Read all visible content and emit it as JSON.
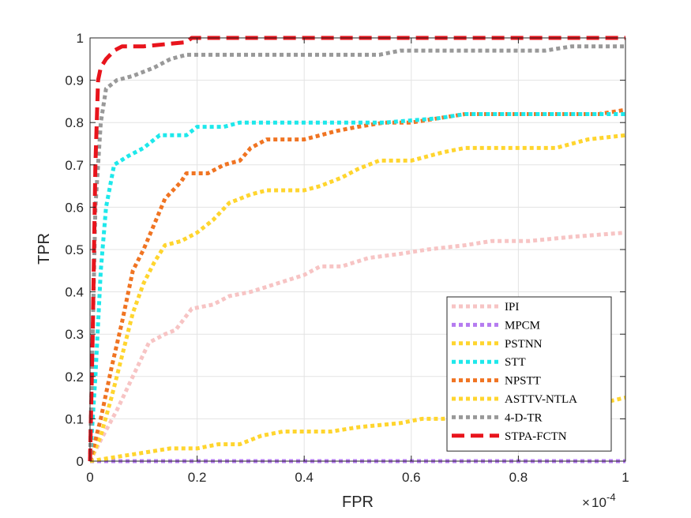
{
  "chart_data": {
    "type": "line",
    "title": "",
    "xlabel": "FPR",
    "ylabel": "TPR",
    "x_exponent_label": "10",
    "x_exponent": "-4",
    "xlim": [
      0,
      1
    ],
    "ylim": [
      0,
      1
    ],
    "x_ticks": [
      "0",
      "0.2",
      "0.4",
      "0.6",
      "0.8",
      "1"
    ],
    "y_ticks": [
      "0",
      "0.1",
      "0.2",
      "0.3",
      "0.4",
      "0.5",
      "0.6",
      "0.7",
      "0.8",
      "0.9",
      "1"
    ],
    "grid": true,
    "legend_position": "bottom-right",
    "series": [
      {
        "name": "IPI",
        "color": "#F7C4C4",
        "style": "dotted",
        "points": [
          [
            0,
            0
          ],
          [
            0.02,
            0.05
          ],
          [
            0.05,
            0.12
          ],
          [
            0.08,
            0.2
          ],
          [
            0.11,
            0.28
          ],
          [
            0.14,
            0.3
          ],
          [
            0.16,
            0.31
          ],
          [
            0.19,
            0.36
          ],
          [
            0.23,
            0.37
          ],
          [
            0.26,
            0.39
          ],
          [
            0.3,
            0.4
          ],
          [
            0.35,
            0.42
          ],
          [
            0.4,
            0.44
          ],
          [
            0.43,
            0.46
          ],
          [
            0.47,
            0.46
          ],
          [
            0.52,
            0.48
          ],
          [
            0.58,
            0.49
          ],
          [
            0.63,
            0.5
          ],
          [
            0.7,
            0.51
          ],
          [
            0.75,
            0.52
          ],
          [
            0.82,
            0.52
          ],
          [
            0.9,
            0.53
          ],
          [
            1.0,
            0.54
          ]
        ]
      },
      {
        "name": "MPCM",
        "color": "#B57BF0",
        "style": "dotted",
        "points": [
          [
            0,
            0
          ],
          [
            1.0,
            0
          ]
        ]
      },
      {
        "name": "PSTNN",
        "color": "#FFD52E",
        "style": "dotted",
        "points": [
          [
            0,
            0
          ],
          [
            0.05,
            0.01
          ],
          [
            0.1,
            0.02
          ],
          [
            0.15,
            0.03
          ],
          [
            0.2,
            0.03
          ],
          [
            0.24,
            0.04
          ],
          [
            0.28,
            0.04
          ],
          [
            0.32,
            0.06
          ],
          [
            0.36,
            0.07
          ],
          [
            0.45,
            0.07
          ],
          [
            0.5,
            0.08
          ],
          [
            0.58,
            0.09
          ],
          [
            0.62,
            0.1
          ],
          [
            0.66,
            0.1
          ],
          [
            0.72,
            0.11
          ],
          [
            0.8,
            0.11
          ],
          [
            0.87,
            0.12
          ],
          [
            0.93,
            0.13
          ],
          [
            1.0,
            0.15
          ]
        ]
      },
      {
        "name": "STT",
        "color": "#1EE8EB",
        "style": "dotted",
        "points": [
          [
            0,
            0
          ],
          [
            0.01,
            0.2
          ],
          [
            0.02,
            0.45
          ],
          [
            0.03,
            0.6
          ],
          [
            0.045,
            0.7
          ],
          [
            0.07,
            0.72
          ],
          [
            0.1,
            0.74
          ],
          [
            0.13,
            0.77
          ],
          [
            0.18,
            0.77
          ],
          [
            0.2,
            0.79
          ],
          [
            0.25,
            0.79
          ],
          [
            0.28,
            0.8
          ],
          [
            0.55,
            0.8
          ],
          [
            0.65,
            0.81
          ],
          [
            0.7,
            0.82
          ],
          [
            1.0,
            0.82
          ]
        ]
      },
      {
        "name": "NPSTT",
        "color": "#F07422",
        "style": "dotted",
        "points": [
          [
            0,
            0
          ],
          [
            0.02,
            0.1
          ],
          [
            0.04,
            0.22
          ],
          [
            0.06,
            0.33
          ],
          [
            0.08,
            0.45
          ],
          [
            0.1,
            0.5
          ],
          [
            0.12,
            0.56
          ],
          [
            0.14,
            0.62
          ],
          [
            0.17,
            0.66
          ],
          [
            0.18,
            0.68
          ],
          [
            0.22,
            0.68
          ],
          [
            0.25,
            0.7
          ],
          [
            0.28,
            0.71
          ],
          [
            0.3,
            0.74
          ],
          [
            0.33,
            0.76
          ],
          [
            0.4,
            0.76
          ],
          [
            0.43,
            0.77
          ],
          [
            0.46,
            0.78
          ],
          [
            0.5,
            0.79
          ],
          [
            0.55,
            0.8
          ],
          [
            0.6,
            0.8
          ],
          [
            0.65,
            0.81
          ],
          [
            0.7,
            0.82
          ],
          [
            0.95,
            0.82
          ],
          [
            1.0,
            0.83
          ]
        ]
      },
      {
        "name": "ASTTV-NTLA",
        "color": "#FFD52E",
        "style": "dotted",
        "points": [
          [
            0,
            0
          ],
          [
            0.02,
            0.06
          ],
          [
            0.04,
            0.15
          ],
          [
            0.06,
            0.25
          ],
          [
            0.08,
            0.35
          ],
          [
            0.1,
            0.42
          ],
          [
            0.12,
            0.47
          ],
          [
            0.14,
            0.51
          ],
          [
            0.17,
            0.52
          ],
          [
            0.2,
            0.54
          ],
          [
            0.23,
            0.57
          ],
          [
            0.26,
            0.61
          ],
          [
            0.3,
            0.63
          ],
          [
            0.33,
            0.64
          ],
          [
            0.4,
            0.64
          ],
          [
            0.43,
            0.65
          ],
          [
            0.47,
            0.67
          ],
          [
            0.5,
            0.69
          ],
          [
            0.54,
            0.71
          ],
          [
            0.6,
            0.71
          ],
          [
            0.63,
            0.72
          ],
          [
            0.66,
            0.73
          ],
          [
            0.7,
            0.74
          ],
          [
            0.87,
            0.74
          ],
          [
            0.93,
            0.76
          ],
          [
            1.0,
            0.77
          ]
        ]
      },
      {
        "name": "4-D-TR",
        "color": "#999999",
        "style": "dotted",
        "points": [
          [
            0,
            0
          ],
          [
            0.01,
            0.6
          ],
          [
            0.02,
            0.8
          ],
          [
            0.03,
            0.88
          ],
          [
            0.05,
            0.9
          ],
          [
            0.08,
            0.91
          ],
          [
            0.1,
            0.92
          ],
          [
            0.12,
            0.93
          ],
          [
            0.15,
            0.95
          ],
          [
            0.18,
            0.96
          ],
          [
            0.54,
            0.96
          ],
          [
            0.58,
            0.97
          ],
          [
            0.85,
            0.97
          ],
          [
            0.9,
            0.98
          ],
          [
            1.0,
            0.98
          ]
        ]
      },
      {
        "name": "STPA-FCTN",
        "color": "#E8141C",
        "style": "dashed",
        "points": [
          [
            0,
            0
          ],
          [
            0.005,
            0.3
          ],
          [
            0.01,
            0.7
          ],
          [
            0.015,
            0.9
          ],
          [
            0.02,
            0.93
          ],
          [
            0.03,
            0.95
          ],
          [
            0.045,
            0.97
          ],
          [
            0.06,
            0.98
          ],
          [
            0.1,
            0.98
          ],
          [
            0.18,
            0.99
          ],
          [
            0.19,
            1.0
          ],
          [
            1.0,
            1.0
          ]
        ]
      }
    ]
  }
}
